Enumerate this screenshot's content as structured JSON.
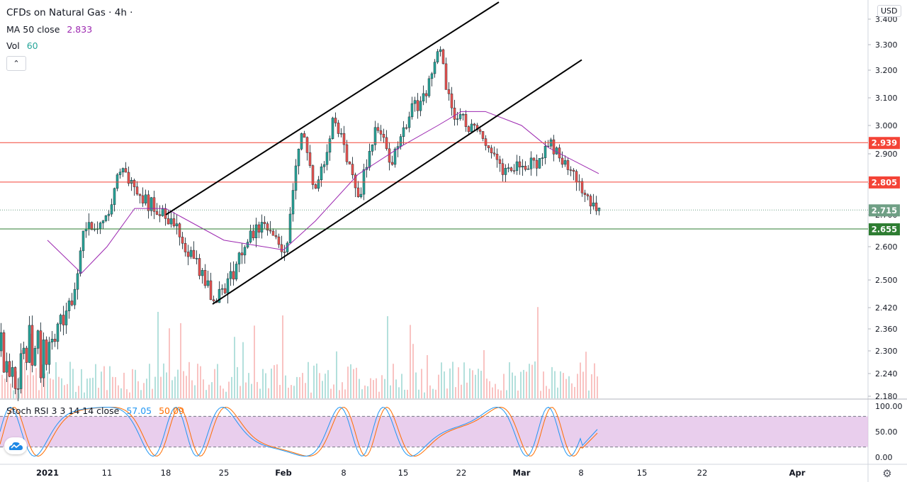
{
  "header": {
    "symbol_title": "CFDs on Natural Gas · 4h ·",
    "ma_label": "MA 50 close",
    "ma_value": "2.833",
    "vol_label": "Vol",
    "vol_value": "60",
    "collapse_glyph": "⌃"
  },
  "currency": "USD",
  "stoch": {
    "label": "Stoch RSI 3 3 14 14 close",
    "k_value": "57.05",
    "d_value": "50.09"
  },
  "colors": {
    "up": "#26a69a",
    "down": "#ef5350",
    "ma": "#9c27b0",
    "stoch_k": "#2196f3",
    "stoch_d": "#ff6d00",
    "stoch_band": "#e1bee7",
    "level_red": "#f44336",
    "level_green": "#4caf50",
    "price_grey": "#6f9f85"
  },
  "icons": {
    "logo": "tradingview-logo-icon",
    "settings": "gear-icon"
  },
  "chart_data": {
    "type": "candlestick",
    "title": "CFDs on Natural Gas · 4h",
    "price_axis": {
      "ticks": [
        "3.400",
        "3.300",
        "3.200",
        "3.100",
        "3.000",
        "2.900",
        "2.800",
        "2.700",
        "2.600",
        "2.500",
        "2.420",
        "2.360",
        "2.300",
        "2.240",
        "2.180"
      ],
      "scale": "log",
      "ylim": [
        2.17,
        3.43
      ]
    },
    "time_axis": {
      "ticks": [
        "2021",
        "11",
        "18",
        "25",
        "Feb",
        "8",
        "15",
        "22",
        "Mar",
        "8",
        "15",
        "22",
        "Apr"
      ]
    },
    "price_levels": [
      {
        "label": "2.939",
        "value": 2.939,
        "color": "#f44336",
        "style": "solid"
      },
      {
        "label": "2.805",
        "value": 2.805,
        "color": "#f44336",
        "style": "solid"
      },
      {
        "label": "2.715",
        "value": 2.715,
        "color": "#6f9f85",
        "style": "dotted"
      },
      {
        "label": "2.655",
        "value": 2.655,
        "color": "#2e7d32",
        "style": "solid"
      }
    ],
    "channel_lines": [
      {
        "from": [
          "18",
          2.7
        ],
        "to": [
          "Feb 19",
          3.45
        ]
      },
      {
        "from": [
          "24",
          2.43
        ],
        "to": [
          "Mar 3",
          3.24
        ]
      }
    ],
    "price_path": [
      {
        "t": "2021",
        "p": 2.3
      },
      {
        "t": "5",
        "p": 2.45
      },
      {
        "t": "8",
        "p": 2.65
      },
      {
        "t": "11",
        "p": 2.7
      },
      {
        "t": "13",
        "p": 2.88
      },
      {
        "t": "15",
        "p": 2.76
      },
      {
        "t": "18",
        "p": 2.7
      },
      {
        "t": "21",
        "p": 2.6
      },
      {
        "t": "24",
        "p": 2.44
      },
      {
        "t": "26",
        "p": 2.5
      },
      {
        "t": "28",
        "p": 2.62
      },
      {
        "t": "30",
        "p": 2.68
      },
      {
        "t": "Feb 1",
        "p": 2.56
      },
      {
        "t": "Feb 3",
        "p": 2.99
      },
      {
        "t": "Feb 5",
        "p": 2.76
      },
      {
        "t": "Feb 7",
        "p": 3.04
      },
      {
        "t": "Feb 10",
        "p": 2.76
      },
      {
        "t": "Feb 12",
        "p": 3.0
      },
      {
        "t": "Feb 14",
        "p": 2.87
      },
      {
        "t": "Feb 16",
        "p": 3.06
      },
      {
        "t": "Feb 18",
        "p": 3.1
      },
      {
        "t": "Feb 19",
        "p": 3.3
      },
      {
        "t": "Feb 21",
        "p": 3.05
      },
      {
        "t": "Feb 23",
        "p": 3.0
      },
      {
        "t": "Feb 25",
        "p": 2.94
      },
      {
        "t": "Feb 27",
        "p": 2.83
      },
      {
        "t": "Mar 1",
        "p": 2.87
      },
      {
        "t": "Mar 3",
        "p": 2.86
      },
      {
        "t": "Mar 5",
        "p": 2.94
      },
      {
        "t": "Mar 7",
        "p": 2.84
      },
      {
        "t": "Mar 8",
        "p": 2.78
      },
      {
        "t": "Mar 9",
        "p": 2.715
      }
    ],
    "ma50_path": [
      {
        "t": "2021",
        "p": 2.62
      },
      {
        "t": "7",
        "p": 2.52
      },
      {
        "t": "11",
        "p": 2.6
      },
      {
        "t": "15",
        "p": 2.72
      },
      {
        "t": "18",
        "p": 2.72
      },
      {
        "t": "25",
        "p": 2.62
      },
      {
        "t": "Feb 1",
        "p": 2.59
      },
      {
        "t": "Feb 5",
        "p": 2.68
      },
      {
        "t": "Feb 10",
        "p": 2.83
      },
      {
        "t": "Feb 15",
        "p": 2.93
      },
      {
        "t": "Feb 19",
        "p": 3.0
      },
      {
        "t": "Feb 22",
        "p": 3.05
      },
      {
        "t": "Feb 25",
        "p": 3.05
      },
      {
        "t": "Mar 1",
        "p": 3.0
      },
      {
        "t": "Mar 5",
        "p": 2.92
      },
      {
        "t": "Mar 9",
        "p": 2.833
      }
    ],
    "volume_scale_max": 60,
    "stoch_rsi": {
      "axis_ticks": [
        "100.00",
        "50.00",
        "0.00"
      ],
      "ylim": [
        0,
        100
      ],
      "band": [
        20,
        80
      ],
      "k_last": 57.05,
      "d_last": 50.09
    }
  }
}
